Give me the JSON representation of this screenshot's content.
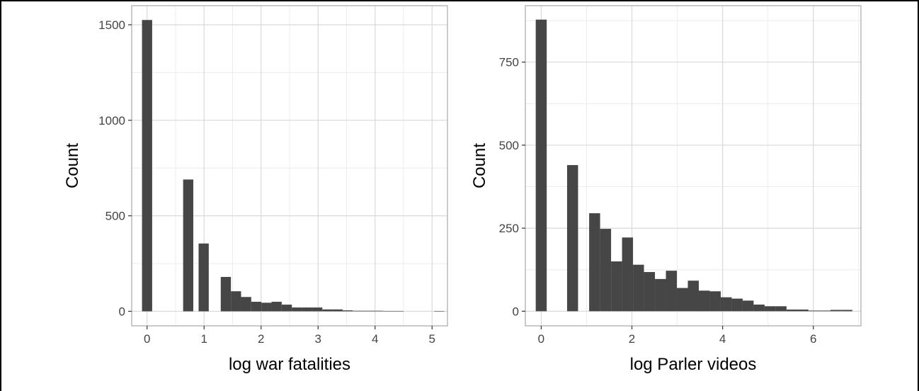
{
  "colors": {
    "bar": "#464646",
    "grid": "#d9d9d9",
    "panel_border": "#b3b3b3",
    "background": "#ffffff"
  },
  "chart_data": [
    {
      "type": "bar",
      "xlabel": "log war fatalities",
      "ylabel": "Count",
      "xlim": [
        -0.27,
        5.27
      ],
      "ylim": [
        -76,
        1600
      ],
      "x_ticks": [
        0,
        1,
        2,
        3,
        4,
        5
      ],
      "y_ticks": [
        0,
        500,
        1000,
        1500
      ],
      "grid": true,
      "bin_width": 0.1782,
      "bin_centers": [
        0.0,
        0.7217,
        0.9928,
        1.3816,
        1.5598,
        1.738,
        1.9162,
        2.0945,
        2.2727,
        2.4509,
        2.6291,
        2.8073,
        2.9855,
        3.1637,
        3.3419,
        3.5202,
        3.6984,
        3.8766,
        4.0548,
        4.233,
        4.4112,
        5.1241
      ],
      "values": [
        1525,
        690,
        355,
        180,
        105,
        75,
        50,
        45,
        50,
        35,
        20,
        20,
        20,
        10,
        10,
        5,
        3,
        3,
        3,
        2,
        2,
        1
      ]
    },
    {
      "type": "bar",
      "xlabel": "log Parler videos",
      "ylabel": "Count",
      "xlim": [
        -0.35,
        7.05
      ],
      "ylim": [
        -44,
        920
      ],
      "x_ticks": [
        0,
        2,
        4,
        6
      ],
      "y_ticks": [
        0,
        250,
        500,
        750
      ],
      "grid": true,
      "bin_width": 0.2418,
      "bin_centers": [
        0.0,
        0.6914,
        1.1777,
        1.4195,
        1.6613,
        1.903,
        2.1448,
        2.3866,
        2.6284,
        2.8702,
        3.112,
        3.3538,
        3.5955,
        3.8373,
        4.0791,
        4.3209,
        4.5627,
        4.8045,
        5.0463,
        5.288,
        5.5298,
        5.7716,
        6.0134,
        6.2552,
        6.497,
        6.7388
      ],
      "values": [
        878,
        440,
        295,
        248,
        150,
        222,
        140,
        118,
        97,
        122,
        70,
        92,
        62,
        60,
        42,
        38,
        32,
        20,
        15,
        15,
        5,
        5,
        2,
        2,
        4,
        4
      ]
    }
  ]
}
